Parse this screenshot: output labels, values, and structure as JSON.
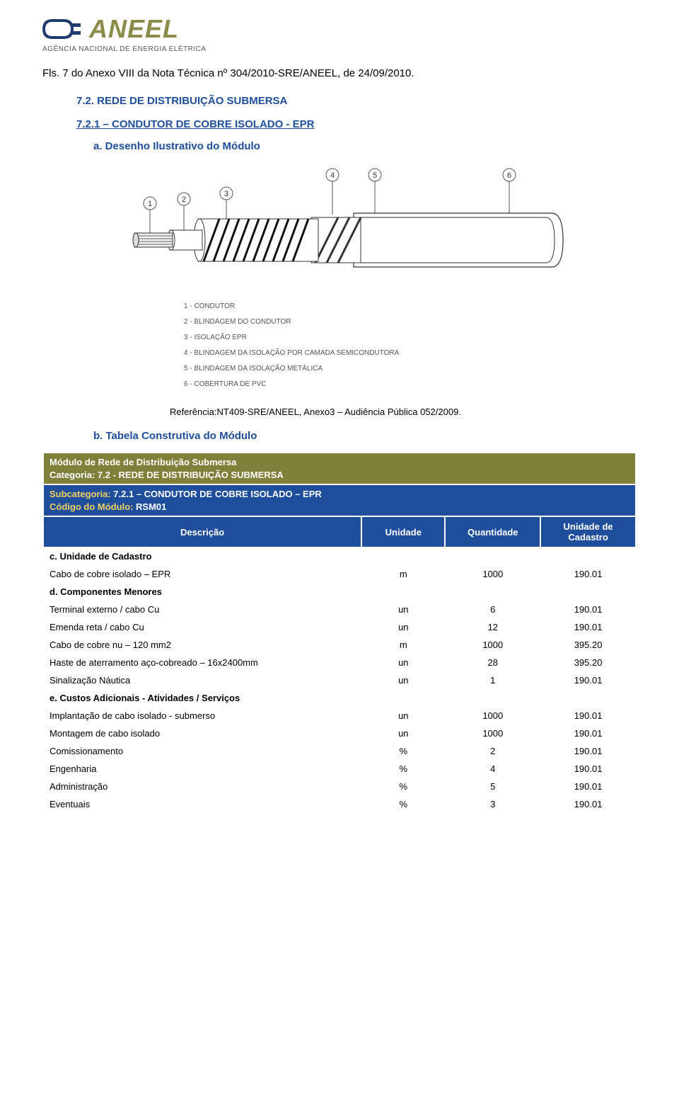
{
  "logo": {
    "brand": "ANEEL",
    "subtitle": "AGÊNCIA NACIONAL DE ENERGIA ELÉTRICA"
  },
  "header_line": "Fls. 7 do Anexo VIII da Nota Técnica nº 304/2010-SRE/ANEEL, de 24/09/2010.",
  "section_heading": "7.2. REDE DE DISTRIBUIÇÃO SUBMERSA",
  "subsection_heading": "7.2.1 – CONDUTOR DE COBRE ISOLADO - EPR",
  "item_a": "a.   Desenho Ilustrativo do Módulo",
  "diagram": {
    "callouts": [
      "1",
      "2",
      "3",
      "4",
      "5",
      "6"
    ],
    "legend": [
      "1 - CONDUTOR",
      "2 - BLINDAGEM DO CONDUTOR",
      "3 - ISOLAÇÃO  EPR",
      "4 - BLINDAGEM DA ISOLAÇÃO POR CAMADA SEMICONDUTORA",
      "5 - BLINDAGEM DA ISOLAÇÃO METÁLICA",
      "6 - COBERTURA DE PVC"
    ]
  },
  "reference_text": "Referência:NT409-SRE/ANEEL, Anexo3 – Audiência Pública 052/2009.",
  "item_b": "b.   Tabela Construtiva do Módulo",
  "table": {
    "green_header": {
      "line1": "Módulo de Rede de Distribuição Submersa",
      "line2": "Categoria: 7.2 - REDE DE DISTRIBUIÇÃO SUBMERSA"
    },
    "blue_header": {
      "line1_label": "Subcategoria:",
      "line1_value": " 7.2.1 – CONDUTOR DE COBRE ISOLADO – EPR",
      "line2_label": "Código do  Módulo:",
      "line2_value": " RSM01"
    },
    "columns": [
      "Descrição",
      "Unidade",
      "Quantidade",
      "Unidade de Cadastro"
    ],
    "rows": [
      {
        "type": "section",
        "cells": [
          "c. Unidade de Cadastro",
          "",
          "",
          ""
        ]
      },
      {
        "type": "data",
        "cells": [
          "Cabo de cobre isolado – EPR",
          "m",
          "1000",
          "190.01"
        ]
      },
      {
        "type": "section",
        "cells": [
          "d. Componentes Menores",
          "",
          "",
          ""
        ]
      },
      {
        "type": "data",
        "cells": [
          "Terminal externo / cabo Cu",
          "un",
          "6",
          "190.01"
        ]
      },
      {
        "type": "data",
        "cells": [
          "Emenda reta / cabo Cu",
          "un",
          "12",
          "190.01"
        ]
      },
      {
        "type": "data",
        "cells": [
          "Cabo de cobre nu – 120 mm2",
          "m",
          "1000",
          "395.20"
        ]
      },
      {
        "type": "data",
        "cells": [
          "Haste de aterramento aço-cobreado – 16x2400mm",
          "un",
          "28",
          "395.20"
        ]
      },
      {
        "type": "data",
        "cells": [
          "Sinalização Náutica",
          "un",
          "1",
          "190.01"
        ]
      },
      {
        "type": "section",
        "cells": [
          "e. Custos Adicionais - Atividades / Serviços",
          "",
          "",
          ""
        ]
      },
      {
        "type": "data",
        "cells": [
          "Implantação de cabo isolado - submerso",
          "un",
          "1000",
          "190.01"
        ]
      },
      {
        "type": "data",
        "cells": [
          "Montagem de cabo isolado",
          "un",
          "1000",
          "190.01"
        ]
      },
      {
        "type": "data",
        "cells": [
          "Comissionamento",
          "%",
          "2",
          "190.01"
        ]
      },
      {
        "type": "data",
        "cells": [
          "Engenharia",
          "%",
          "4",
          "190.01"
        ]
      },
      {
        "type": "data",
        "cells": [
          "Administração",
          "%",
          "5",
          "190.01"
        ]
      },
      {
        "type": "data",
        "cells": [
          "Eventuais",
          "%",
          "3",
          "190.01"
        ]
      }
    ]
  },
  "colors": {
    "green_header": "#80803b",
    "blue_header": "#1f4e9c",
    "heading_blue": "#1f4e9c",
    "sub_yellow": "#f0d060"
  }
}
